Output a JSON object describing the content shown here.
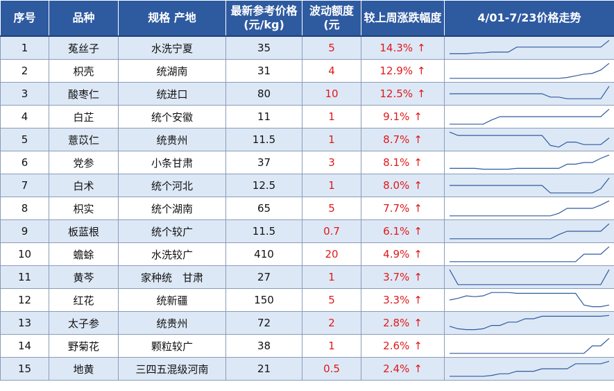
{
  "headers": {
    "seq": "序号",
    "variety": "品种",
    "spec": "规格 产地",
    "price_line1": "最新参考价格",
    "price_line2": "(元/kg)",
    "fluct_line1": "波动额度",
    "fluct_line2": "(元",
    "change": "较上周涨跌幅度",
    "trend": "4/01-7/23价格走势"
  },
  "arrow_symbol": "↑",
  "colors": {
    "header_bg": "#2e5aa0",
    "row_alt": "#dde8f6",
    "up": "#e01818",
    "line": "#2e5aa0"
  },
  "rows": [
    {
      "seq": "1",
      "name": "菟丝子",
      "spec": "水洗宁夏",
      "price": "35",
      "fluct": "5",
      "change": "14.3%",
      "trend": [
        0.15,
        0.15,
        0.15,
        0.2,
        0.2,
        0.25,
        0.25,
        0.25,
        0.55,
        0.55,
        0.55,
        0.55,
        0.55,
        0.55,
        0.55,
        0.55,
        0.55,
        0.55,
        0.55,
        0.95
      ]
    },
    {
      "seq": "2",
      "name": "枳壳",
      "spec": "统湖南",
      "price": "31",
      "fluct": "4",
      "change": "12.9%",
      "trend": [
        0.05,
        0.05,
        0.05,
        0.05,
        0.05,
        0.05,
        0.05,
        0.05,
        0.05,
        0.05,
        0.05,
        0.05,
        0.05,
        0.05,
        0.1,
        0.2,
        0.3,
        0.35,
        0.55,
        0.95
      ]
    },
    {
      "seq": "3",
      "name": "酸枣仁",
      "spec": "统进口",
      "price": "80",
      "fluct": "10",
      "change": "12.5%",
      "trend": [
        0.5,
        0.5,
        0.5,
        0.5,
        0.5,
        0.5,
        0.5,
        0.5,
        0.5,
        0.5,
        0.5,
        0.5,
        0.3,
        0.3,
        0.2,
        0.2,
        0.2,
        0.2,
        0.2,
        0.95
      ]
    },
    {
      "seq": "4",
      "name": "白芷",
      "spec": "统个安徽",
      "price": "11",
      "fluct": "1",
      "change": "9.1%",
      "trend": [
        0.05,
        0.05,
        0.05,
        0.05,
        0.05,
        0.3,
        0.5,
        0.5,
        0.5,
        0.5,
        0.5,
        0.5,
        0.5,
        0.5,
        0.5,
        0.5,
        0.5,
        0.5,
        0.5,
        0.95
      ]
    },
    {
      "seq": "5",
      "name": "薏苡仁",
      "spec": "统贵州",
      "price": "11.5",
      "fluct": "1",
      "change": "8.7%",
      "trend": [
        0.95,
        0.75,
        0.75,
        0.75,
        0.75,
        0.75,
        0.75,
        0.75,
        0.75,
        0.75,
        0.75,
        0.75,
        0.15,
        0.05,
        0.35,
        0.35,
        0.2,
        0.2,
        0.2,
        0.6
      ]
    },
    {
      "seq": "6",
      "name": "党参",
      "spec": "小条甘肃",
      "price": "37",
      "fluct": "3",
      "change": "8.1%",
      "trend": [
        0.15,
        0.15,
        0.15,
        0.15,
        0.1,
        0.1,
        0.1,
        0.1,
        0.15,
        0.15,
        0.15,
        0.15,
        0.15,
        0.15,
        0.4,
        0.4,
        0.5,
        0.5,
        0.75,
        0.95
      ]
    },
    {
      "seq": "7",
      "name": "白术",
      "spec": "统个河北",
      "price": "12.5",
      "fluct": "1",
      "change": "8.0%",
      "trend": [
        0.5,
        0.5,
        0.5,
        0.5,
        0.5,
        0.5,
        0.5,
        0.5,
        0.5,
        0.5,
        0.5,
        0.5,
        0.05,
        0.05,
        0.05,
        0.05,
        0.05,
        0.05,
        0.3,
        0.95
      ]
    },
    {
      "seq": "8",
      "name": "枳实",
      "spec": "统个湖南",
      "price": "65",
      "fluct": "5",
      "change": "7.7%",
      "trend": [
        0.05,
        0.05,
        0.05,
        0.05,
        0.05,
        0.05,
        0.05,
        0.05,
        0.05,
        0.05,
        0.05,
        0.05,
        0.05,
        0.2,
        0.5,
        0.5,
        0.5,
        0.5,
        0.7,
        0.95
      ]
    },
    {
      "seq": "9",
      "name": "板蓝根",
      "spec": "统个较广",
      "price": "11.5",
      "fluct": "0.7",
      "change": "6.1%",
      "trend": [
        0.05,
        0.05,
        0.05,
        0.05,
        0.05,
        0.05,
        0.05,
        0.05,
        0.05,
        0.05,
        0.05,
        0.05,
        0.05,
        0.3,
        0.5,
        0.5,
        0.5,
        0.5,
        0.5,
        0.95
      ]
    },
    {
      "seq": "10",
      "name": "蟾蜍",
      "spec": "水洗较广",
      "price": "410",
      "fluct": "20",
      "change": "4.9%",
      "trend": [
        0.05,
        0.05,
        0.05,
        0.05,
        0.05,
        0.05,
        0.05,
        0.05,
        0.05,
        0.05,
        0.05,
        0.05,
        0.05,
        0.05,
        0.05,
        0.05,
        0.5,
        0.5,
        0.5,
        0.95
      ]
    },
    {
      "seq": "11",
      "name": "黄芩",
      "spec": "家种统　甘肃",
      "price": "27",
      "fluct": "1",
      "change": "3.7%",
      "trend": [
        0.95,
        0.05,
        0.05,
        0.05,
        0.05,
        0.05,
        0.05,
        0.05,
        0.05,
        0.05,
        0.05,
        0.05,
        0.05,
        0.05,
        0.05,
        0.05,
        0.05,
        0.05,
        0.05,
        0.95
      ]
    },
    {
      "seq": "12",
      "name": "红花",
      "spec": "统新疆",
      "price": "150",
      "fluct": "5",
      "change": "3.3%",
      "trend": [
        0.5,
        0.6,
        0.75,
        0.7,
        0.75,
        0.95,
        0.95,
        0.95,
        0.9,
        0.9,
        0.9,
        0.9,
        0.9,
        0.9,
        0.9,
        0.9,
        0.2,
        0.1,
        0.1,
        0.2
      ]
    },
    {
      "seq": "13",
      "name": "太子参",
      "spec": "统贵州",
      "price": "72",
      "fluct": "2",
      "change": "2.8%",
      "trend": [
        0.3,
        0.15,
        0.1,
        0.1,
        0.15,
        0.35,
        0.35,
        0.55,
        0.55,
        0.75,
        0.75,
        0.9,
        0.9,
        0.9,
        0.9,
        0.9,
        0.9,
        0.9,
        0.9,
        0.95
      ]
    },
    {
      "seq": "14",
      "name": "野菊花",
      "spec": "颗粒较广",
      "price": "38",
      "fluct": "1",
      "change": "2.6%",
      "trend": [
        0.05,
        0.05,
        0.05,
        0.05,
        0.05,
        0.05,
        0.05,
        0.05,
        0.05,
        0.05,
        0.05,
        0.05,
        0.05,
        0.05,
        0.05,
        0.05,
        0.05,
        0.5,
        0.5,
        0.95
      ]
    },
    {
      "seq": "15",
      "name": "地黄",
      "spec": "三四五混级河南",
      "price": "21",
      "fluct": "0.5",
      "change": "2.4%",
      "trend": [
        0.05,
        0.05,
        0.05,
        0.05,
        0.05,
        0.1,
        0.2,
        0.2,
        0.35,
        0.35,
        0.35,
        0.5,
        0.5,
        0.5,
        0.5,
        0.8,
        0.8,
        0.8,
        0.8,
        0.95
      ]
    }
  ]
}
